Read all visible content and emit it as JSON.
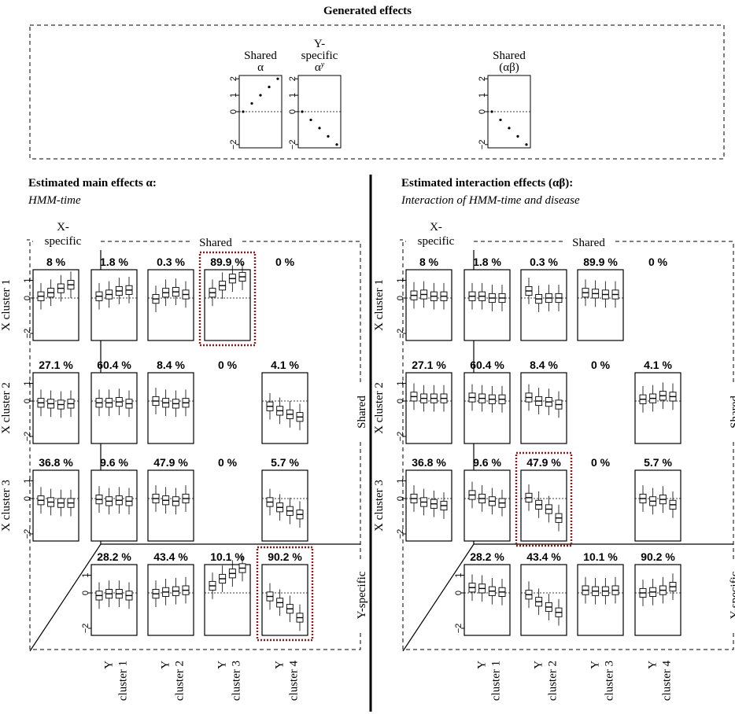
{
  "generated": {
    "title": "Generated effects",
    "panels": [
      {
        "label_lines": [
          "Shared",
          "α"
        ],
        "values": [
          0,
          0.5,
          1,
          1.5,
          2
        ]
      },
      {
        "label_lines": [
          "Y-",
          "specific",
          "α^y"
        ],
        "values": [
          0,
          -0.5,
          -1,
          -1.5,
          -2
        ]
      },
      {
        "label_lines": [
          "Shared",
          "(αβ)"
        ],
        "values": [
          0,
          -0.5,
          -1,
          -1.5,
          -2
        ]
      }
    ],
    "ticks": [
      "2",
      "1",
      "0",
      "−2"
    ],
    "ylim": [
      -2.2,
      2.2
    ]
  },
  "left": {
    "title": "Estimated main effects α:",
    "subtitle": "HMM-time",
    "highlight": [
      "0-2",
      "3-3"
    ]
  },
  "right": {
    "title": "Estimated interaction effects (αβ):",
    "subtitle": "Interaction of HMM-time and disease",
    "highlight": [
      "2-1"
    ]
  },
  "labels": {
    "x_specific": [
      "X-",
      "specific"
    ],
    "shared_top": "Shared",
    "shared_side": "Shared",
    "y_specific": "Y-specific",
    "row_labels": [
      "X cluster 1",
      "X cluster 2",
      "X cluster 3"
    ],
    "col_labels": [
      [
        "Y",
        "cluster 1"
      ],
      [
        "Y",
        "cluster 2"
      ],
      [
        "Y",
        "cluster 3"
      ],
      [
        "Y",
        "cluster 4"
      ]
    ],
    "yticks": [
      "1",
      "0",
      "−2"
    ]
  },
  "chart_data": {
    "type": "boxplot",
    "ylim": [
      -2.4,
      1.6
    ],
    "left_grid": {
      "xspec": [
        {
          "pct": "8  %",
          "medians": [
            0.1,
            0.3,
            0.55,
            0.75
          ]
        },
        {
          "pct": "27.1  %",
          "medians": [
            -0.1,
            -0.15,
            -0.2,
            -0.15
          ]
        },
        {
          "pct": "36.8  %",
          "medians": [
            -0.1,
            -0.2,
            -0.25,
            -0.25
          ]
        }
      ],
      "cells": [
        [
          {
            "pct": "1.8 %",
            "medians": [
              0.1,
              0.2,
              0.4,
              0.45
            ]
          },
          {
            "pct": "0.3 %",
            "medians": [
              -0.05,
              0.3,
              0.35,
              0.2
            ]
          },
          {
            "pct": "89.9 %",
            "medians": [
              0.3,
              0.7,
              1.1,
              1.2
            ]
          },
          {
            "pct": "0 %",
            "medians": null
          }
        ],
        [
          {
            "pct": "60.4 %",
            "medians": [
              -0.1,
              -0.1,
              -0.05,
              -0.15
            ]
          },
          {
            "pct": "8.4 %",
            "medians": [
              0,
              -0.1,
              -0.15,
              -0.1
            ]
          },
          {
            "pct": "0 %",
            "medians": null
          },
          {
            "pct": "4.1 %",
            "medians": [
              -0.3,
              -0.55,
              -0.75,
              -0.9
            ]
          }
        ],
        [
          {
            "pct": "9.6 %",
            "medians": [
              -0.05,
              -0.15,
              -0.1,
              -0.15
            ]
          },
          {
            "pct": "47.9 %",
            "medians": [
              0,
              -0.1,
              -0.15,
              0
            ]
          },
          {
            "pct": "0 %",
            "medians": null
          },
          {
            "pct": "5.7 %",
            "medians": [
              -0.2,
              -0.5,
              -0.7,
              -0.9
            ]
          }
        ]
      ],
      "yspec": [
        {
          "pct": "28.2  %",
          "medians": [
            -0.15,
            -0.05,
            -0.05,
            -0.15
          ]
        },
        {
          "pct": "43.4  %",
          "medians": [
            -0.05,
            0.05,
            0.1,
            0.15
          ]
        },
        {
          "pct": "10.1  %",
          "medians": [
            0.4,
            0.8,
            1.1,
            1.4
          ]
        },
        {
          "pct": "90.2  %",
          "medians": [
            -0.2,
            -0.55,
            -0.9,
            -1.4
          ]
        }
      ]
    },
    "right_grid": {
      "xspec": [
        {
          "pct": "8  %",
          "medians": [
            0.15,
            0.2,
            0.1,
            0.1
          ]
        },
        {
          "pct": "27.1  %",
          "medians": [
            0.25,
            0.15,
            0.15,
            0.15
          ]
        },
        {
          "pct": "36.8  %",
          "medians": [
            0,
            -0.2,
            -0.3,
            -0.4
          ]
        }
      ],
      "cells": [
        [
          {
            "pct": "1.8 %",
            "medians": [
              0.1,
              0.1,
              0,
              0
            ]
          },
          {
            "pct": "0.3 %",
            "medians": [
              0.4,
              -0.05,
              0,
              0
            ]
          },
          {
            "pct": "89.9 %",
            "medians": [
              0.3,
              0.25,
              0.2,
              0.2
            ]
          },
          {
            "pct": "0 %",
            "medians": null
          }
        ],
        [
          {
            "pct": "60.4 %",
            "medians": [
              0.2,
              0.15,
              0.1,
              0.1
            ]
          },
          {
            "pct": "8.4 %",
            "medians": [
              0.2,
              0,
              -0.05,
              -0.2
            ]
          },
          {
            "pct": "0 %",
            "medians": null
          },
          {
            "pct": "4.1 %",
            "medians": [
              0.1,
              0.15,
              0.3,
              0.25
            ]
          }
        ],
        [
          {
            "pct": "9.6 %",
            "medians": [
              0.2,
              0,
              -0.15,
              -0.25
            ]
          },
          {
            "pct": "47.9 %",
            "medians": [
              0.05,
              -0.35,
              -0.6,
              -1.1
            ]
          },
          {
            "pct": "0 %",
            "medians": null
          },
          {
            "pct": "5.7 %",
            "medians": [
              0,
              -0.15,
              -0.05,
              -0.35
            ]
          }
        ]
      ],
      "yspec": [
        {
          "pct": "28.2  %",
          "medians": [
            0.3,
            0.25,
            0.1,
            0.05
          ]
        },
        {
          "pct": "43.4  %",
          "medians": [
            -0.1,
            -0.5,
            -0.8,
            -1.1
          ]
        },
        {
          "pct": "10.1  %",
          "medians": [
            0.15,
            0.1,
            0.1,
            0.15
          ]
        },
        {
          "pct": "90.2  %",
          "medians": [
            0,
            0.05,
            0.15,
            0.35
          ]
        }
      ]
    }
  }
}
